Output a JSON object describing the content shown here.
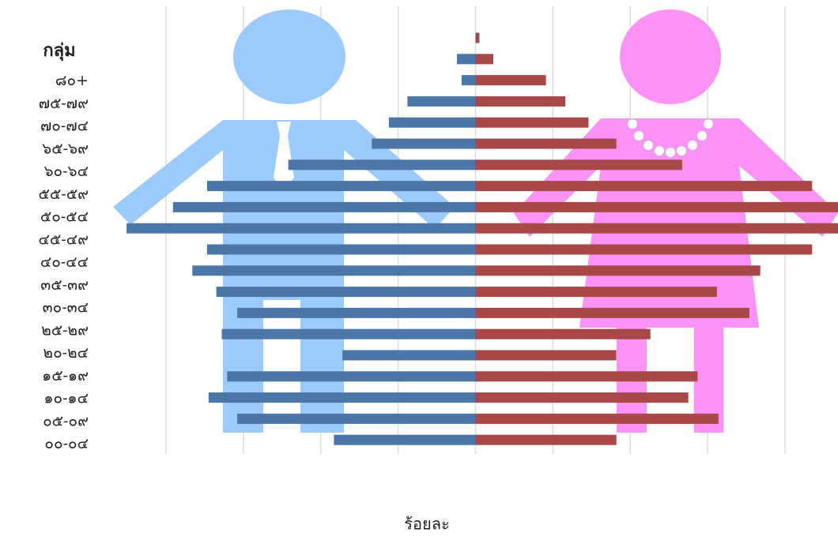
{
  "chart_data": {
    "type": "pyramid",
    "header": "กลุ่ม",
    "xlabel": "ร้อยละ",
    "categories": [
      null,
      null,
      null,
      "๘๐+",
      "๗๕-๗๙",
      "๗๐-๗๔",
      "๖๕-๖๙",
      "๖๐-๖๔",
      "๕๕-๕๙",
      "๕๐-๕๔",
      "๔๕-๔๙",
      "๔๐-๔๔",
      "๓๕-๓๙",
      "๓๐-๓๔",
      "๒๕-๒๙",
      "๒๐-๒๔",
      "๑๕-๑๙",
      "๑๐-๑๔",
      "๐๕-๐๙",
      "๐๐-๐๔"
    ],
    "series": [
      {
        "color": "#4a76a8",
        "values": [
          0,
          0.24,
          0.18,
          0.88,
          1.12,
          1.34,
          2.42,
          3.47,
          3.91,
          4.51,
          3.47,
          3.66,
          3.35,
          3.08,
          3.28,
          1.72,
          3.21,
          3.45,
          3.08,
          1.83
        ]
      },
      {
        "color": "#a84848",
        "values": [
          0.05,
          0.23,
          0.91,
          1.16,
          1.46,
          1.82,
          2.67,
          4.35,
          4.7,
          4.7,
          4.35,
          3.68,
          3.12,
          3.54,
          2.26,
          1.82,
          2.87,
          2.75,
          3.14,
          1.82
        ]
      }
    ],
    "xlim": [
      -4,
      4
    ],
    "xticks": [
      -4,
      -3,
      -2,
      -1,
      0,
      1,
      2,
      3,
      4
    ],
    "grid": true
  }
}
